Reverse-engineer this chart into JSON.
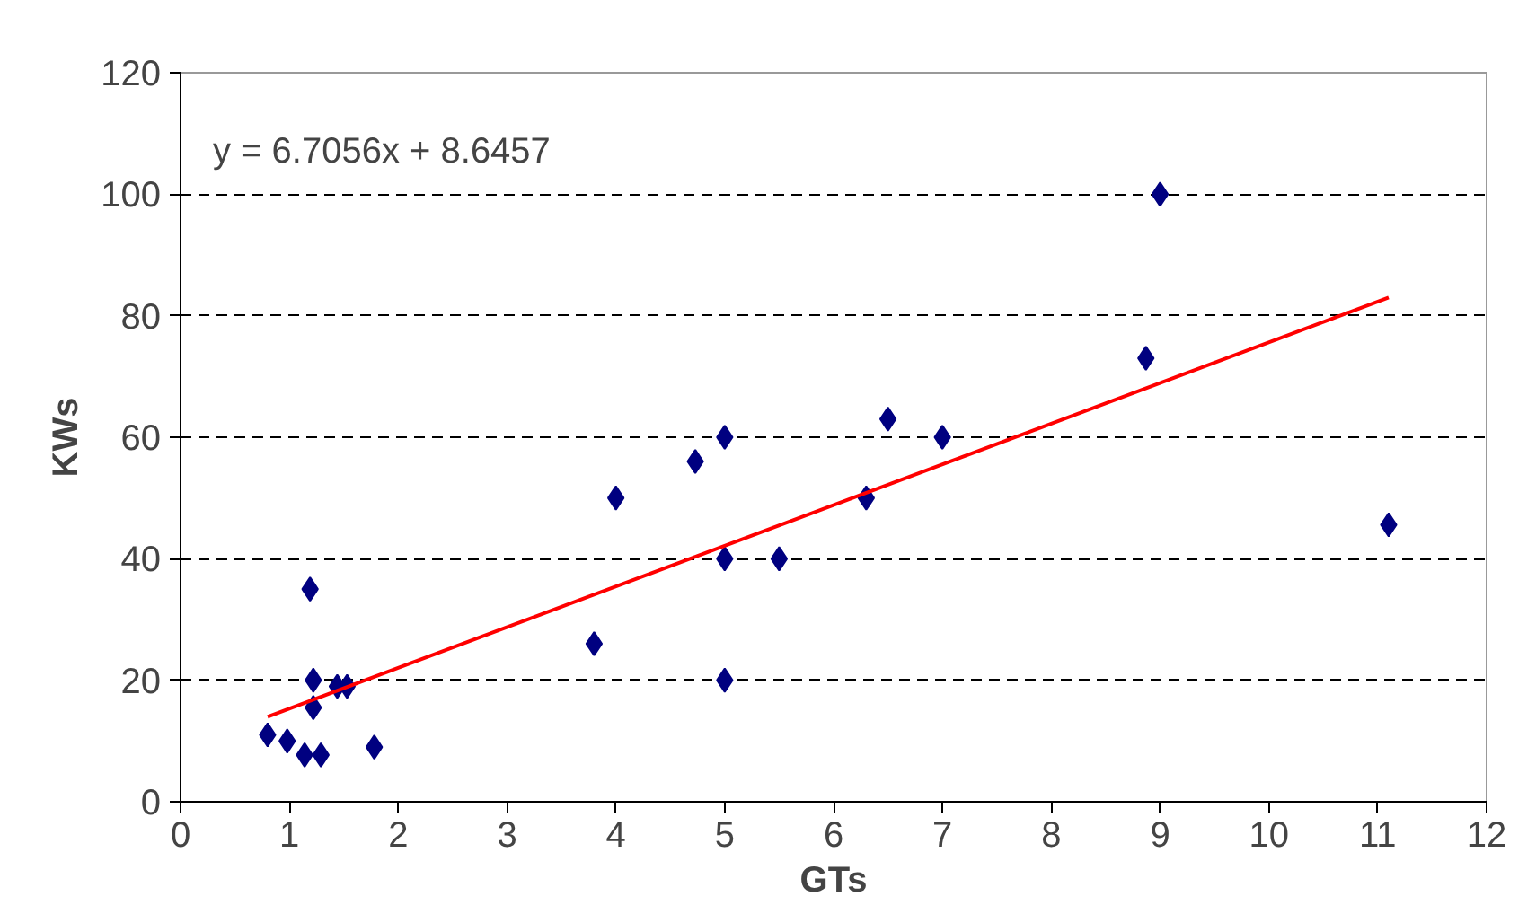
{
  "chart_data": {
    "type": "scatter",
    "xlabel": "GTs",
    "ylabel": "KWs",
    "xlim": [
      0,
      12
    ],
    "xticks": [
      0,
      1,
      2,
      3,
      4,
      5,
      6,
      7,
      8,
      9,
      10,
      11,
      12
    ],
    "ylim": [
      0,
      120
    ],
    "yticks": [
      0,
      20,
      40,
      60,
      80,
      100,
      120
    ],
    "grid": "y",
    "marker": "diamond",
    "annotations": [
      "y = 6.7056x + 8.6457"
    ],
    "series": [
      {
        "color": "#000080",
        "x": [
          0.8,
          0.98,
          1.14,
          1.29,
          1.19,
          1.22,
          1.22,
          1.44,
          1.53,
          1.78,
          3.8,
          4.0,
          4.73,
          5,
          5,
          5.5,
          5,
          6.3,
          6.5,
          7,
          8.87,
          9.0,
          11.1
        ],
        "values": [
          11,
          10,
          7.7,
          7.7,
          35,
          15.5,
          20,
          19,
          19,
          9,
          26,
          50,
          56,
          60,
          40,
          40,
          20,
          50,
          63,
          60,
          73,
          100,
          45.6
        ]
      },
      {
        "type": "line",
        "marker": "none",
        "color": "#ff0000",
        "x": [
          0.8,
          11.1
        ],
        "values": [
          14,
          83
        ]
      }
    ]
  }
}
